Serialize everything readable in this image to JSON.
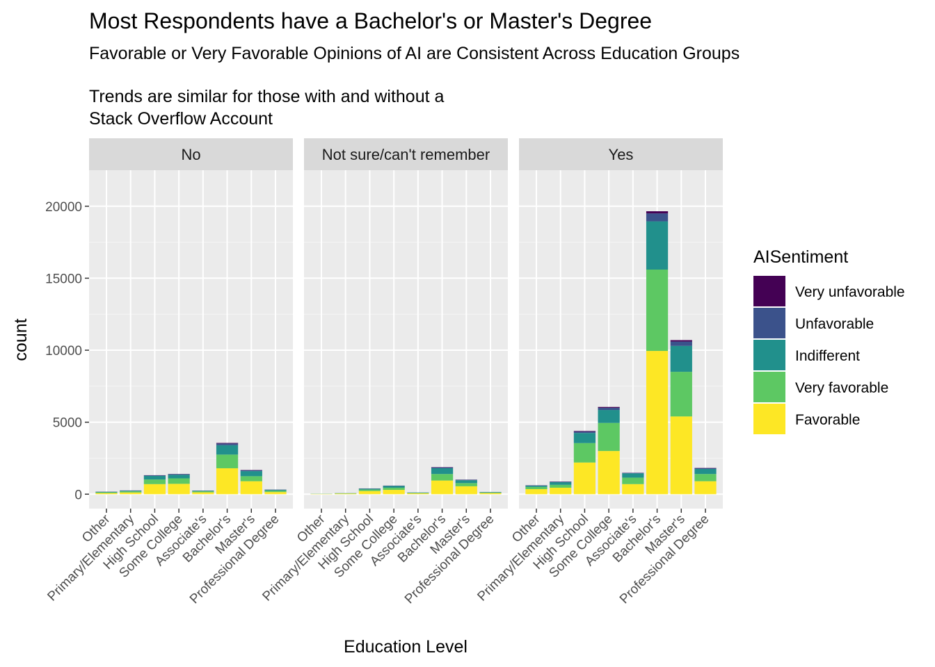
{
  "chart_data": {
    "type": "bar",
    "stacked": true,
    "title": "Most Respondents have a Bachelor's or Master's Degree",
    "subtitle_lines": [
      "Favorable or Very Favorable Opinions of AI are Consistent Across Education Groups",
      "",
      "Trends are similar for those with and without a",
      "Stack Overflow Account"
    ],
    "xlabel": "Education Level",
    "ylabel": "count",
    "ylim": [
      -1000,
      22500
    ],
    "yticks": [
      0,
      5000,
      10000,
      15000,
      20000
    ],
    "grid": true,
    "legend_position": "right",
    "legend": {
      "title": "AISentiment",
      "entries": [
        "Very unfavorable",
        "Unfavorable",
        "Indifferent",
        "Very favorable",
        "Favorable"
      ]
    },
    "colors": {
      "Very unfavorable": "#440154",
      "Unfavorable": "#3b528b",
      "Indifferent": "#21908c",
      "Very favorable": "#5dc863",
      "Favorable": "#fde725"
    },
    "stack_order": [
      "Favorable",
      "Very favorable",
      "Indifferent",
      "Unfavorable",
      "Very unfavorable"
    ],
    "categories": [
      "Other",
      "Primary/Elementary",
      "High School",
      "Some College",
      "Associate's",
      "Bachelor's",
      "Master's",
      "Professional Degree"
    ],
    "facets": [
      {
        "label": "No",
        "series": [
          {
            "name": "Favorable",
            "values": [
              80,
              120,
              700,
              720,
              130,
              1800,
              900,
              150
            ]
          },
          {
            "name": "Very favorable",
            "values": [
              50,
              80,
              320,
              380,
              70,
              950,
              350,
              90
            ]
          },
          {
            "name": "Indifferent",
            "values": [
              30,
              40,
              250,
              250,
              40,
              650,
              350,
              60
            ]
          },
          {
            "name": "Unfavorable",
            "values": [
              10,
              15,
              40,
              45,
              10,
              120,
              60,
              15
            ]
          },
          {
            "name": "Very unfavorable",
            "values": [
              5,
              5,
              10,
              10,
              5,
              40,
              20,
              5
            ]
          }
        ]
      },
      {
        "label": "Not sure/can't remember",
        "series": [
          {
            "name": "Favorable",
            "values": [
              20,
              40,
              220,
              300,
              60,
              950,
              550,
              80
            ]
          },
          {
            "name": "Very favorable",
            "values": [
              10,
              20,
              100,
              150,
              30,
              450,
              220,
              40
            ]
          },
          {
            "name": "Indifferent",
            "values": [
              5,
              10,
              60,
              120,
              20,
              400,
              200,
              30
            ]
          },
          {
            "name": "Unfavorable",
            "values": [
              0,
              3,
              15,
              20,
              5,
              60,
              30,
              5
            ]
          },
          {
            "name": "Very unfavorable",
            "values": [
              0,
              1,
              5,
              5,
              1,
              20,
              10,
              2
            ]
          }
        ]
      },
      {
        "label": "Yes",
        "series": [
          {
            "name": "Favorable",
            "values": [
              350,
              450,
              2200,
              3000,
              700,
              9950,
              5400,
              900
            ]
          },
          {
            "name": "Very favorable",
            "values": [
              150,
              200,
              1350,
              1950,
              450,
              5650,
              3100,
              500
            ]
          },
          {
            "name": "Indifferent",
            "values": [
              90,
              180,
              700,
              900,
              300,
              3350,
              1800,
              350
            ]
          },
          {
            "name": "Unfavorable",
            "values": [
              20,
              40,
              100,
              150,
              30,
              550,
              300,
              50
            ]
          },
          {
            "name": "Very unfavorable",
            "values": [
              10,
              10,
              40,
              60,
              10,
              150,
              100,
              20
            ]
          }
        ]
      }
    ]
  }
}
